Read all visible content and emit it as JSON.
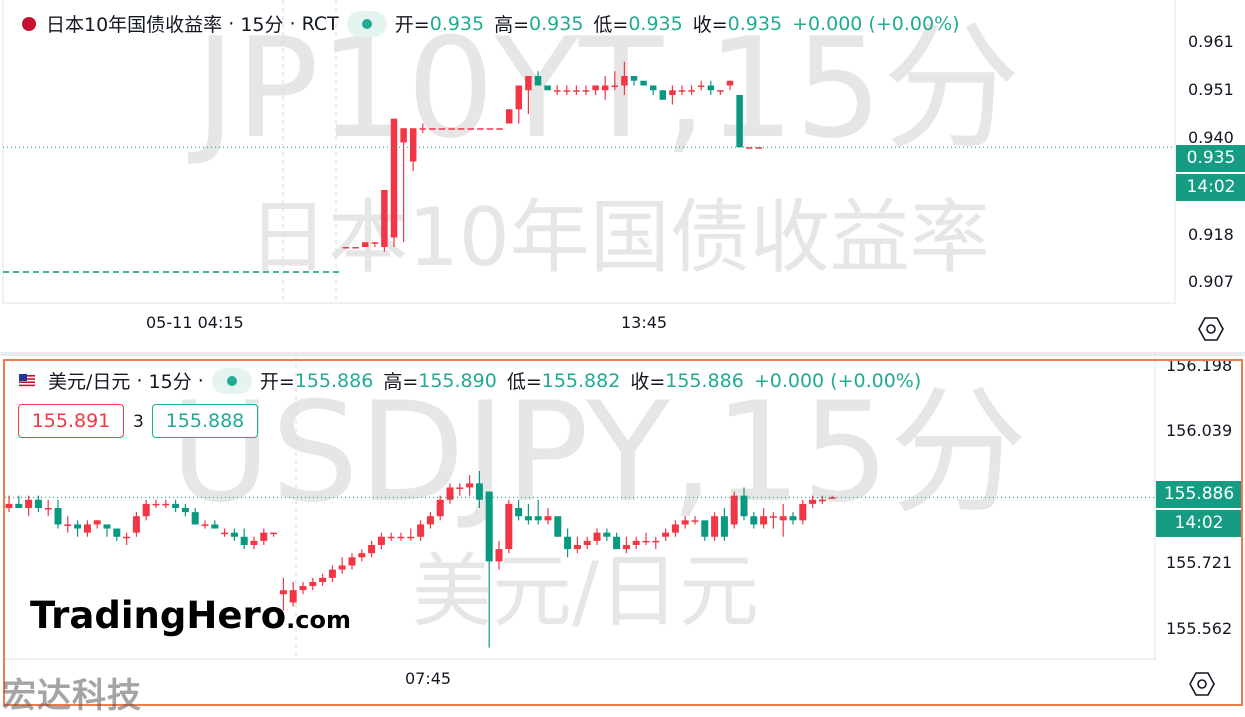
{
  "panels": [
    {
      "id": "jp10y",
      "symbol_name": "日本10年国债收益率",
      "interval": "15分",
      "source": "RCT",
      "legend": {
        "open_label": "开=",
        "open": "0.935",
        "high_label": "高=",
        "high": "0.935",
        "low_label": "低=",
        "low": "0.935",
        "close_label": "收=",
        "close": "0.935",
        "change": "+0.000 (+0.00%)"
      },
      "watermark_line1": "JP10YT,15分",
      "watermark_line2": "日本10年国债收益率",
      "y_ticks": [
        "0.961",
        "0.951",
        "0.940",
        "0.918",
        "0.907"
      ],
      "last_price": "0.935",
      "countdown": "14:02",
      "x_ticks": [
        "05-11 04:15",
        "13:45"
      ]
    },
    {
      "id": "usdjpy",
      "symbol_name": "美元/日元",
      "interval": "15分",
      "legend": {
        "open_label": "开=",
        "open": "155.886",
        "high_label": "高=",
        "high": "155.890",
        "low_label": "低=",
        "low": "155.882",
        "close_label": "收=",
        "close": "155.886",
        "change": "+0.000 (+0.00%)"
      },
      "bid": "155.891",
      "spread": "3",
      "ask": "155.888",
      "watermark_line1": "USDJPY,15分",
      "watermark_line2": "美元/日元",
      "y_ticks": [
        "156.198",
        "156.039",
        "155.721",
        "155.562"
      ],
      "last_price": "155.886",
      "countdown": "14:02",
      "x_ticks": [
        "07:45"
      ]
    }
  ],
  "branding": {
    "logo_main": "TradingHero",
    "logo_suffix": ".com",
    "corner_logo": "宏达科技"
  },
  "colors": {
    "up": "#f23645",
    "down": "#089981",
    "price_tag": "#169c82",
    "highlight_border": "#f07c4e"
  },
  "icons": {
    "settings": "hexagon-settings-icon"
  },
  "chart_data": [
    {
      "type": "candlestick",
      "title": "日本10年国债收益率 · 15分 · RCT",
      "ylim": [
        0.902,
        0.966
      ],
      "y_ticks": [
        0.961,
        0.951,
        0.94,
        0.918,
        0.907
      ],
      "last_value": 0.935,
      "x_ticks": [
        "05-11 04:15",
        "13:45"
      ],
      "candles": [
        [
          0.914,
          0.914,
          0.914,
          0.914
        ],
        [
          0.914,
          0.914,
          0.914,
          0.914
        ],
        [
          0.914,
          0.915,
          0.914,
          0.915
        ],
        [
          0.915,
          0.915,
          0.914,
          0.915
        ],
        [
          0.914,
          0.926,
          0.913,
          0.926
        ],
        [
          0.916,
          0.941,
          0.914,
          0.941
        ],
        [
          0.936,
          0.939,
          0.915,
          0.939
        ],
        [
          0.932,
          0.939,
          0.93,
          0.939
        ],
        [
          0.939,
          0.94,
          0.938,
          0.939
        ],
        [
          0.939,
          0.939,
          0.939,
          0.939
        ],
        [
          0.939,
          0.939,
          0.939,
          0.939
        ],
        [
          0.939,
          0.939,
          0.939,
          0.939
        ],
        [
          0.939,
          0.939,
          0.939,
          0.939
        ],
        [
          0.939,
          0.939,
          0.939,
          0.939
        ],
        [
          0.939,
          0.939,
          0.939,
          0.939
        ],
        [
          0.939,
          0.939,
          0.939,
          0.939
        ],
        [
          0.939,
          0.939,
          0.939,
          0.939
        ],
        [
          0.94,
          0.943,
          0.94,
          0.943
        ],
        [
          0.943,
          0.948,
          0.94,
          0.948
        ],
        [
          0.947,
          0.95,
          0.942,
          0.95
        ],
        [
          0.95,
          0.951,
          0.948,
          0.948
        ],
        [
          0.948,
          0.948,
          0.947,
          0.947
        ],
        [
          0.947,
          0.948,
          0.946,
          0.947
        ],
        [
          0.947,
          0.948,
          0.946,
          0.947
        ],
        [
          0.947,
          0.948,
          0.946,
          0.947
        ],
        [
          0.947,
          0.948,
          0.946,
          0.947
        ],
        [
          0.947,
          0.948,
          0.946,
          0.948
        ],
        [
          0.947,
          0.95,
          0.945,
          0.948
        ],
        [
          0.948,
          0.951,
          0.947,
          0.948
        ],
        [
          0.948,
          0.953,
          0.946,
          0.95
        ],
        [
          0.95,
          0.95,
          0.948,
          0.949
        ],
        [
          0.949,
          0.949,
          0.948,
          0.948
        ],
        [
          0.948,
          0.948,
          0.946,
          0.947
        ],
        [
          0.947,
          0.947,
          0.945,
          0.945
        ],
        [
          0.946,
          0.948,
          0.944,
          0.947
        ],
        [
          0.947,
          0.948,
          0.946,
          0.947
        ],
        [
          0.947,
          0.948,
          0.946,
          0.947
        ],
        [
          0.948,
          0.949,
          0.947,
          0.948
        ],
        [
          0.948,
          0.949,
          0.946,
          0.947
        ],
        [
          0.947,
          0.947,
          0.946,
          0.947
        ],
        [
          0.948,
          0.949,
          0.947,
          0.949
        ],
        [
          0.946,
          0.946,
          0.935,
          0.935
        ],
        [
          0.935,
          0.935,
          0.935,
          0.935
        ],
        [
          0.935,
          0.935,
          0.935,
          0.935
        ]
      ]
    },
    {
      "type": "candlestick",
      "title": "美元/日元 · 15分",
      "ylim": [
        155.49,
        156.23
      ],
      "y_ticks": [
        156.198,
        156.039,
        155.721,
        155.562
      ],
      "last_value": 155.886,
      "x_ticks": [
        "07:45"
      ],
      "candles": [
        [
          155.86,
          155.89,
          155.85,
          155.87
        ],
        [
          155.87,
          155.89,
          155.86,
          155.86
        ],
        [
          155.86,
          155.89,
          155.84,
          155.88
        ],
        [
          155.88,
          155.89,
          155.85,
          155.86
        ],
        [
          155.86,
          155.88,
          155.84,
          155.86
        ],
        [
          155.86,
          155.88,
          155.81,
          155.82
        ],
        [
          155.82,
          155.84,
          155.8,
          155.82
        ],
        [
          155.82,
          155.83,
          155.79,
          155.81
        ],
        [
          155.8,
          155.83,
          155.79,
          155.82
        ],
        [
          155.82,
          155.83,
          155.81,
          155.83
        ],
        [
          155.82,
          155.82,
          155.79,
          155.81
        ],
        [
          155.81,
          155.81,
          155.78,
          155.79
        ],
        [
          155.79,
          155.8,
          155.77,
          155.79
        ],
        [
          155.8,
          155.85,
          155.79,
          155.84
        ],
        [
          155.84,
          155.88,
          155.83,
          155.87
        ],
        [
          155.87,
          155.88,
          155.86,
          155.87
        ],
        [
          155.87,
          155.88,
          155.86,
          155.87
        ],
        [
          155.87,
          155.88,
          155.85,
          155.86
        ],
        [
          155.86,
          155.87,
          155.84,
          155.85
        ],
        [
          155.85,
          155.86,
          155.82,
          155.82
        ],
        [
          155.82,
          155.83,
          155.81,
          155.82
        ],
        [
          155.82,
          155.83,
          155.81,
          155.81
        ],
        [
          155.8,
          155.81,
          155.79,
          155.8
        ],
        [
          155.8,
          155.81,
          155.78,
          155.79
        ],
        [
          155.79,
          155.81,
          155.76,
          155.77
        ],
        [
          155.77,
          155.79,
          155.76,
          155.78
        ],
        [
          155.78,
          155.81,
          155.77,
          155.8
        ],
        [
          155.8,
          155.8,
          155.79,
          155.8
        ],
        [
          155.65,
          155.69,
          155.61,
          155.66
        ],
        [
          155.63,
          155.68,
          155.62,
          155.66
        ],
        [
          155.66,
          155.68,
          155.65,
          155.67
        ],
        [
          155.67,
          155.69,
          155.66,
          155.68
        ],
        [
          155.68,
          155.7,
          155.67,
          155.69
        ],
        [
          155.69,
          155.72,
          155.68,
          155.71
        ],
        [
          155.71,
          155.74,
          155.7,
          155.72
        ],
        [
          155.72,
          155.75,
          155.71,
          155.74
        ],
        [
          155.74,
          155.76,
          155.73,
          155.75
        ],
        [
          155.75,
          155.78,
          155.74,
          155.77
        ],
        [
          155.77,
          155.8,
          155.76,
          155.79
        ],
        [
          155.79,
          155.8,
          155.78,
          155.79
        ],
        [
          155.79,
          155.8,
          155.78,
          155.79
        ],
        [
          155.79,
          155.81,
          155.78,
          155.79
        ],
        [
          155.79,
          155.83,
          155.78,
          155.82
        ],
        [
          155.82,
          155.85,
          155.81,
          155.84
        ],
        [
          155.84,
          155.89,
          155.83,
          155.88
        ],
        [
          155.88,
          155.92,
          155.87,
          155.91
        ],
        [
          155.91,
          155.92,
          155.89,
          155.91
        ],
        [
          155.91,
          155.94,
          155.89,
          155.92
        ],
        [
          155.92,
          155.95,
          155.86,
          155.88
        ],
        [
          155.9,
          155.9,
          155.52,
          155.73
        ],
        [
          155.73,
          155.78,
          155.71,
          155.76
        ],
        [
          155.76,
          155.88,
          155.75,
          155.87
        ],
        [
          155.86,
          155.88,
          155.83,
          155.84
        ],
        [
          155.84,
          155.87,
          155.82,
          155.83
        ],
        [
          155.84,
          155.88,
          155.82,
          155.83
        ],
        [
          155.83,
          155.86,
          155.82,
          155.84
        ],
        [
          155.84,
          155.84,
          155.79,
          155.79
        ],
        [
          155.79,
          155.81,
          155.74,
          155.76
        ],
        [
          155.76,
          155.79,
          155.75,
          155.77
        ],
        [
          155.77,
          155.79,
          155.76,
          155.78
        ],
        [
          155.78,
          155.81,
          155.77,
          155.8
        ],
        [
          155.8,
          155.81,
          155.78,
          155.79
        ],
        [
          155.79,
          155.8,
          155.76,
          155.76
        ],
        [
          155.76,
          155.79,
          155.75,
          155.77
        ],
        [
          155.77,
          155.79,
          155.76,
          155.78
        ],
        [
          155.78,
          155.8,
          155.77,
          155.78
        ],
        [
          155.78,
          155.79,
          155.76,
          155.78
        ],
        [
          155.79,
          155.81,
          155.78,
          155.8
        ],
        [
          155.8,
          155.83,
          155.79,
          155.82
        ],
        [
          155.82,
          155.84,
          155.81,
          155.83
        ],
        [
          155.83,
          155.84,
          155.82,
          155.83
        ],
        [
          155.83,
          155.83,
          155.78,
          155.79
        ],
        [
          155.79,
          155.85,
          155.78,
          155.84
        ],
        [
          155.84,
          155.86,
          155.78,
          155.79
        ],
        [
          155.82,
          155.9,
          155.81,
          155.89
        ],
        [
          155.89,
          155.91,
          155.83,
          155.84
        ],
        [
          155.84,
          155.85,
          155.81,
          155.82
        ],
        [
          155.82,
          155.86,
          155.81,
          155.84
        ],
        [
          155.84,
          155.85,
          155.81,
          155.84
        ],
        [
          155.83,
          155.87,
          155.79,
          155.84
        ],
        [
          155.84,
          155.85,
          155.82,
          155.83
        ],
        [
          155.83,
          155.88,
          155.82,
          155.87
        ],
        [
          155.87,
          155.89,
          155.86,
          155.88
        ],
        [
          155.88,
          155.89,
          155.87,
          155.88
        ],
        [
          155.886,
          155.89,
          155.882,
          155.886
        ]
      ]
    }
  ]
}
